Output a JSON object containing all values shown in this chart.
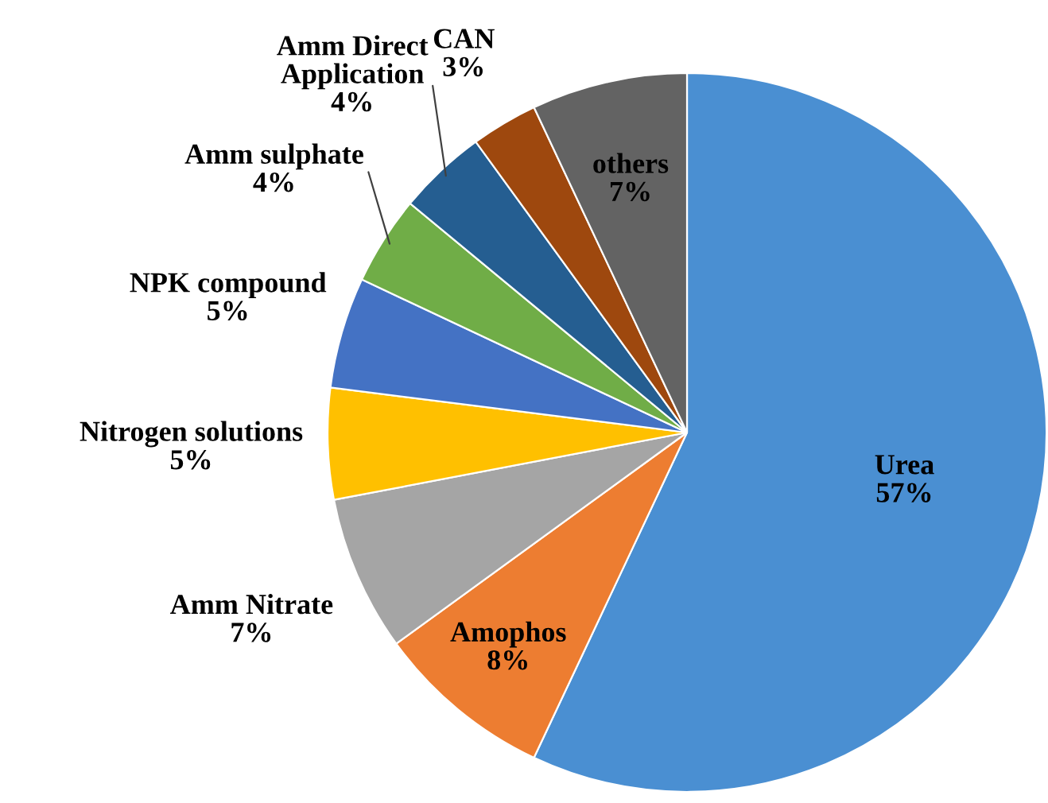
{
  "chart_data": {
    "type": "pie",
    "categories": [
      "Urea",
      "Amophos",
      "Amm Nitrate",
      "Nitrogen solutions",
      "NPK compound",
      "Amm sulphate",
      "Amm Direct Application",
      "CAN",
      "others"
    ],
    "values": [
      57,
      8,
      7,
      5,
      5,
      4,
      4,
      3,
      7
    ],
    "value_labels": [
      "57%",
      "8%",
      "7%",
      "5%",
      "5%",
      "4%",
      "4%",
      "3%",
      "7%"
    ],
    "colors": [
      "#4a8fd2",
      "#ed7d31",
      "#a5a5a5",
      "#ffc000",
      "#4472c4",
      "#70ad47",
      "#255e91",
      "#9e480e",
      "#636363"
    ],
    "legend": false
  }
}
